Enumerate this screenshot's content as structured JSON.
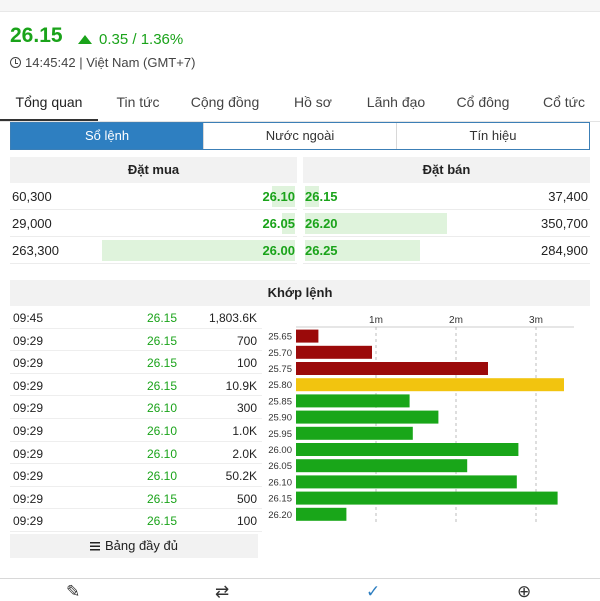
{
  "header": {
    "price": "26.15",
    "change": "0.35 / 1.36%",
    "time": "14:45:42 | Việt Nam (GMT+7)"
  },
  "tabs": [
    "Tổng quan",
    "Tin tức",
    "Cộng đồng",
    "Hồ sơ",
    "Lãnh đạo",
    "Cổ đông",
    "Cổ tức"
  ],
  "segments": [
    "Sổ lệnh",
    "Nước ngoài",
    "Tín hiệu"
  ],
  "orderbook": {
    "buy_title": "Đặt mua",
    "sell_title": "Đặt bán",
    "buy": [
      {
        "volume": "60,300",
        "price": "26.10",
        "depth": 0.09
      },
      {
        "volume": "29,000",
        "price": "26.05",
        "depth": 0.05
      },
      {
        "volume": "263,300",
        "price": "26.00",
        "depth": 0.75
      }
    ],
    "sell": [
      {
        "price": "26.15",
        "volume": "37,400",
        "depth": 0.1
      },
      {
        "price": "26.20",
        "volume": "350,700",
        "depth": 1.0
      },
      {
        "price": "26.25",
        "volume": "284,900",
        "depth": 0.81
      }
    ]
  },
  "matched": {
    "title": "Khớp lệnh",
    "rows": [
      {
        "time": "09:45",
        "price": "26.15",
        "volume": "1,803.6K"
      },
      {
        "time": "09:29",
        "price": "26.15",
        "volume": "700"
      },
      {
        "time": "09:29",
        "price": "26.15",
        "volume": "100"
      },
      {
        "time": "09:29",
        "price": "26.15",
        "volume": "10.9K"
      },
      {
        "time": "09:29",
        "price": "26.10",
        "volume": "300"
      },
      {
        "time": "09:29",
        "price": "26.10",
        "volume": "1.0K"
      },
      {
        "time": "09:29",
        "price": "26.10",
        "volume": "2.0K"
      },
      {
        "time": "09:29",
        "price": "26.10",
        "volume": "50.2K"
      },
      {
        "time": "09:29",
        "price": "26.15",
        "volume": "500"
      },
      {
        "time": "09:29",
        "price": "26.15",
        "volume": "100"
      }
    ],
    "full_button": "Bảng đầy đủ"
  },
  "chart_data": {
    "type": "bar",
    "orientation": "horizontal",
    "categories": [
      "25.65",
      "25.70",
      "25.75",
      "25.80",
      "25.85",
      "25.90",
      "25.95",
      "26.00",
      "26.05",
      "26.10",
      "26.15",
      "26.20"
    ],
    "values": [
      0.28,
      0.95,
      2.4,
      3.35,
      1.42,
      1.78,
      1.46,
      2.78,
      2.14,
      2.76,
      3.27,
      0.63
    ],
    "colors": [
      "#9b0a0a",
      "#9b0a0a",
      "#9b0a0a",
      "#f2c40f",
      "#19a619",
      "#19a619",
      "#19a619",
      "#19a619",
      "#19a619",
      "#19a619",
      "#19a619",
      "#19a619"
    ],
    "xticks": [
      "1m",
      "2m",
      "3m"
    ],
    "xtick_values": [
      1,
      2,
      3
    ],
    "xlim": [
      0,
      3.6
    ],
    "grid": "dashed vertical"
  },
  "bottombar": {
    "icons": [
      "pencil-icon",
      "swap-icon",
      "check-icon",
      "add-note-icon"
    ],
    "glyphs": [
      "✎",
      "⇄",
      "✓",
      "⊕"
    ]
  },
  "colors": {
    "up": "#1aa31a",
    "accent": "#2e7fc1",
    "bar_down": "#9b0a0a",
    "bar_ref": "#f2c40f",
    "bar_up": "#19a619"
  }
}
